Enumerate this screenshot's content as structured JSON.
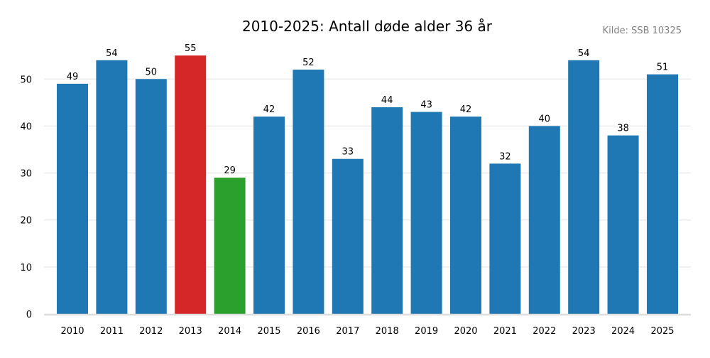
{
  "chart_data": {
    "type": "bar",
    "title": "2010-2025: Antall døde alder 36 år",
    "source": "Kilde: SSB 10325",
    "xlabel": "",
    "ylabel": "",
    "categories": [
      "2010",
      "2011",
      "2012",
      "2013",
      "2014",
      "2015",
      "2016",
      "2017",
      "2018",
      "2019",
      "2020",
      "2021",
      "2022",
      "2023",
      "2024",
      "2025"
    ],
    "values": [
      49,
      54,
      50,
      55,
      29,
      42,
      52,
      33,
      44,
      43,
      42,
      32,
      40,
      54,
      38,
      51
    ],
    "highlight": {
      "max": "2013",
      "min": "2014"
    },
    "ylim": [
      0,
      57.75
    ],
    "yticks": [
      0,
      10,
      20,
      30,
      40,
      50
    ],
    "grid": "horizontal",
    "colors": {
      "default": "#1f77b4",
      "max": "#d62728",
      "min": "#2ca02c",
      "grid": "#ebebeb",
      "axis": "#dddddd",
      "source": "#808080"
    }
  }
}
